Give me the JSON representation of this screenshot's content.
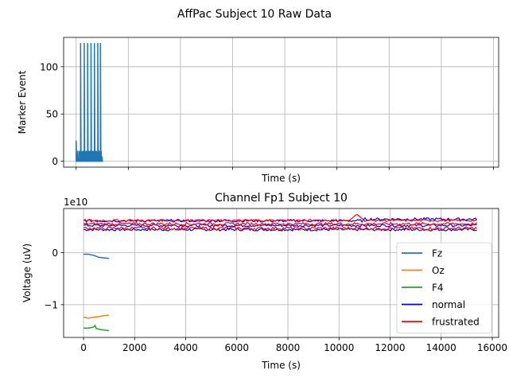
{
  "figure": {
    "suptitle": "AffPac Subject 10 Raw Data"
  },
  "chart_data": [
    {
      "type": "line",
      "title": "",
      "xlabel": "Time (s)",
      "ylabel": "Marker Event",
      "xlim": [
        -480,
        16200
      ],
      "ylim": [
        -6.2,
        131
      ],
      "xticks": [
        0,
        2000,
        4000,
        6000,
        8000,
        10000,
        12000,
        14000,
        16000
      ],
      "xtick_labels_visible": false,
      "yticks": [
        0,
        50,
        100
      ],
      "ytick_labels": [
        "0",
        "50",
        "100"
      ],
      "grid": true,
      "series": [
        {
          "name": "",
          "color": "#1f77b4",
          "baseline": 0,
          "spikes": [
            {
              "x": 0,
              "y": 22
            },
            {
              "x": 60,
              "y": 11
            },
            {
              "x": 120,
              "y": 11
            },
            {
              "x": 170,
              "y": 125
            },
            {
              "x": 220,
              "y": 11
            },
            {
              "x": 270,
              "y": 11
            },
            {
              "x": 310,
              "y": 125
            },
            {
              "x": 360,
              "y": 11
            },
            {
              "x": 400,
              "y": 11
            },
            {
              "x": 440,
              "y": 125
            },
            {
              "x": 490,
              "y": 11
            },
            {
              "x": 530,
              "y": 11
            },
            {
              "x": 570,
              "y": 125
            },
            {
              "x": 620,
              "y": 11
            },
            {
              "x": 660,
              "y": 11
            },
            {
              "x": 700,
              "y": 125
            },
            {
              "x": 745,
              "y": 11
            },
            {
              "x": 790,
              "y": 11
            },
            {
              "x": 830,
              "y": 125
            },
            {
              "x": 880,
              "y": 11
            },
            {
              "x": 930,
              "y": 125
            },
            {
              "x": 960,
              "y": 11
            },
            {
              "x": 990,
              "y": 5
            }
          ]
        }
      ]
    },
    {
      "type": "line",
      "title": "Channel Fp1 Subject 10",
      "xlabel": "Time (s)",
      "ylabel": "Voltage (uV)",
      "offset_text": "1e10",
      "xlim": [
        -780,
        16250
      ],
      "ylim": [
        -1.63,
        0.85
      ],
      "xticks": [
        0,
        2000,
        4000,
        6000,
        8000,
        10000,
        12000,
        14000,
        16000
      ],
      "xtick_labels": [
        "0",
        "2000",
        "4000",
        "6000",
        "8000",
        "10000",
        "12000",
        "14000",
        "16000"
      ],
      "yticks": [
        -1,
        0
      ],
      "ytick_labels": [
        "−1",
        "0"
      ],
      "grid": true,
      "legend": {
        "position": "lower-right"
      },
      "series": [
        {
          "name": "Fz",
          "color": "#1f77b4",
          "points": [
            [
              0,
              -0.03
            ],
            [
              200,
              -0.03
            ],
            [
              400,
              -0.05
            ],
            [
              600,
              -0.09
            ],
            [
              800,
              -0.1
            ],
            [
              1000,
              -0.11
            ]
          ]
        },
        {
          "name": "Oz",
          "color": "#ff7f0e",
          "points": [
            [
              0,
              -1.24
            ],
            [
              200,
              -1.26
            ],
            [
              400,
              -1.24
            ],
            [
              600,
              -1.23
            ],
            [
              800,
              -1.21
            ],
            [
              1000,
              -1.2
            ]
          ]
        },
        {
          "name": "F4",
          "color": "#2ca02c",
          "points": [
            [
              0,
              -1.45
            ],
            [
              200,
              -1.45
            ],
            [
              400,
              -1.43
            ],
            [
              450,
              -1.4
            ],
            [
              500,
              -1.46
            ],
            [
              700,
              -1.48
            ],
            [
              1000,
              -1.5
            ]
          ]
        },
        {
          "name": "normal",
          "color": "#0000ff",
          "bands": [
            [
              0.42,
              0.47
            ],
            [
              0.5,
              0.55
            ],
            [
              0.59,
              0.64
            ]
          ],
          "x_range": [
            0,
            15400
          ],
          "rising_tail": true
        },
        {
          "name": "frustrated",
          "color": "#ff0000",
          "bands": [
            [
              0.44,
              0.5
            ],
            [
              0.53,
              0.58
            ],
            [
              0.6,
              0.64
            ]
          ],
          "x_range": [
            0,
            15400
          ],
          "bump": {
            "x": 10700,
            "y": 0.74
          }
        }
      ]
    }
  ]
}
